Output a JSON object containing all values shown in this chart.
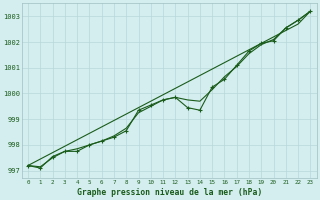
{
  "title": "Graphe pression niveau de la mer (hPa)",
  "bg_color": "#d4eef0",
  "grid_color": "#b8d8d8",
  "line_color": "#1a5c1a",
  "ylim": [
    996.7,
    1003.5
  ],
  "xlim": [
    -0.5,
    23.5
  ],
  "yticks": [
    997,
    998,
    999,
    1000,
    1001,
    1002,
    1003
  ],
  "xticks": [
    0,
    1,
    2,
    3,
    4,
    5,
    6,
    7,
    8,
    9,
    10,
    11,
    12,
    13,
    14,
    15,
    16,
    17,
    18,
    19,
    20,
    21,
    22,
    23
  ],
  "line_straight": [
    997.2,
    997.45,
    997.7,
    997.95,
    998.2,
    998.45,
    998.7,
    998.95,
    999.2,
    999.45,
    999.7,
    999.95,
    1000.2,
    1000.45,
    1000.7,
    1000.95,
    1001.2,
    1001.45,
    1001.7,
    1001.95,
    1002.2,
    1002.45,
    1002.7,
    1003.2
  ],
  "line_smooth": [
    997.2,
    997.15,
    997.5,
    997.75,
    997.85,
    998.0,
    998.15,
    998.35,
    998.65,
    999.25,
    999.5,
    999.75,
    999.85,
    999.75,
    999.7,
    1000.15,
    1000.65,
    1001.05,
    1001.55,
    1001.9,
    1002.1,
    1002.55,
    1002.85,
    1003.2
  ],
  "line_measured": [
    997.2,
    997.1,
    997.55,
    997.75,
    997.75,
    998.0,
    998.15,
    998.3,
    998.55,
    999.35,
    999.55,
    999.75,
    999.85,
    999.45,
    999.35,
    1000.25,
    1000.55,
    1001.1,
    1001.65,
    1001.95,
    1002.05,
    1002.55,
    1002.85,
    1003.2
  ]
}
